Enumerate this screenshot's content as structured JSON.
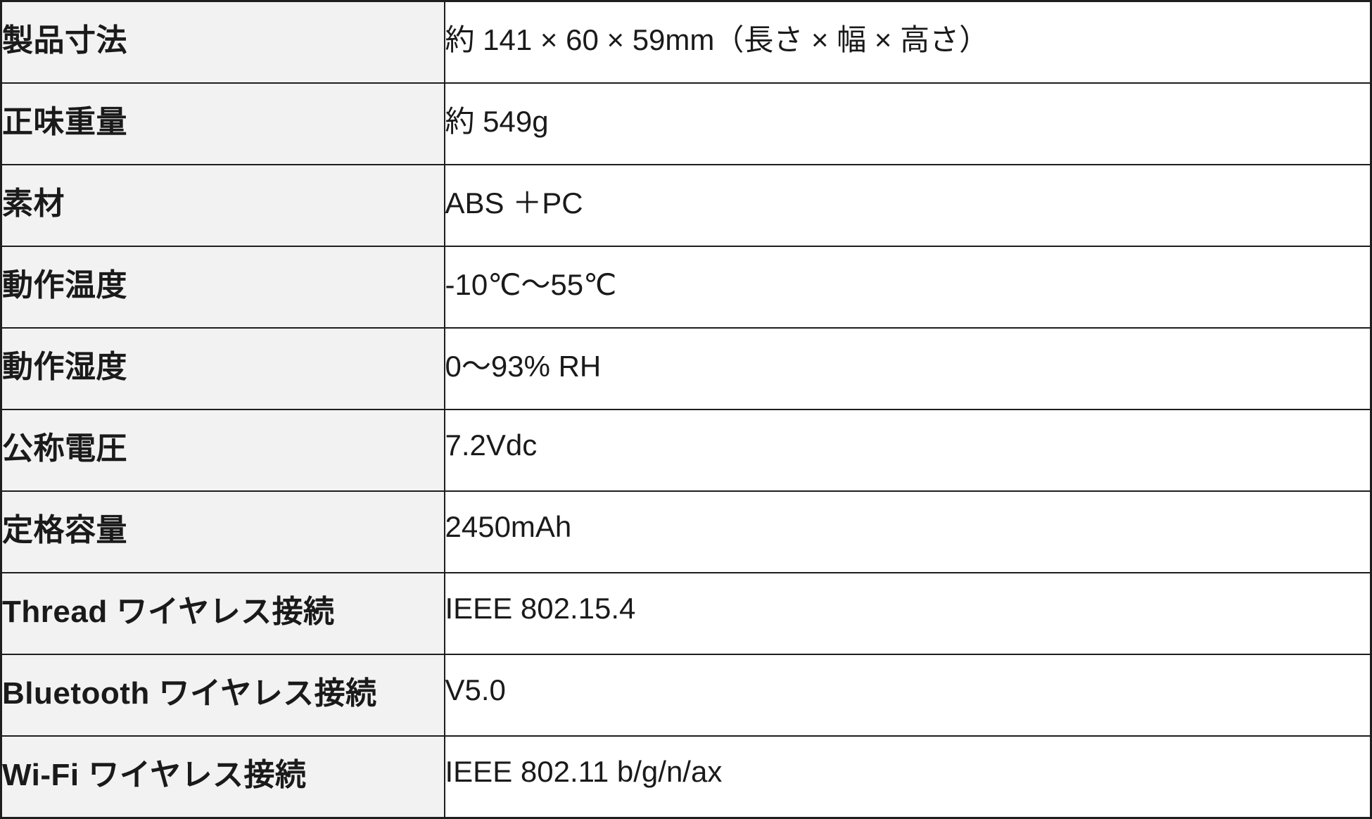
{
  "colors": {
    "page_bg": "#ffffff",
    "label_bg": "#f2f2f2",
    "value_bg": "#ffffff",
    "border": "#1e1e1e",
    "text": "#1a1a1a"
  },
  "table": {
    "rows": [
      {
        "label": "製品寸法",
        "value": "約 141 × 60 × 59mm（長さ × 幅 × 高さ）"
      },
      {
        "label": "正味重量",
        "value": "約 549g"
      },
      {
        "label": "素材",
        "value": "ABS ＋PC"
      },
      {
        "label": "動作温度",
        "value": "-10℃～55℃"
      },
      {
        "label": "動作湿度",
        "value": "0～93% RH"
      },
      {
        "label": "公称電圧",
        "value": "7.2Vdc"
      },
      {
        "label": "定格容量",
        "value": "2450mAh"
      },
      {
        "label": "Thread ワイヤレス接続",
        "value": "IEEE 802.15.4"
      },
      {
        "label": "Bluetooth ワイヤレス接続",
        "value": "V5.0"
      },
      {
        "label": "Wi-Fi ワイヤレス接続",
        "value": "IEEE 802.11 b/g/n/ax"
      }
    ]
  }
}
